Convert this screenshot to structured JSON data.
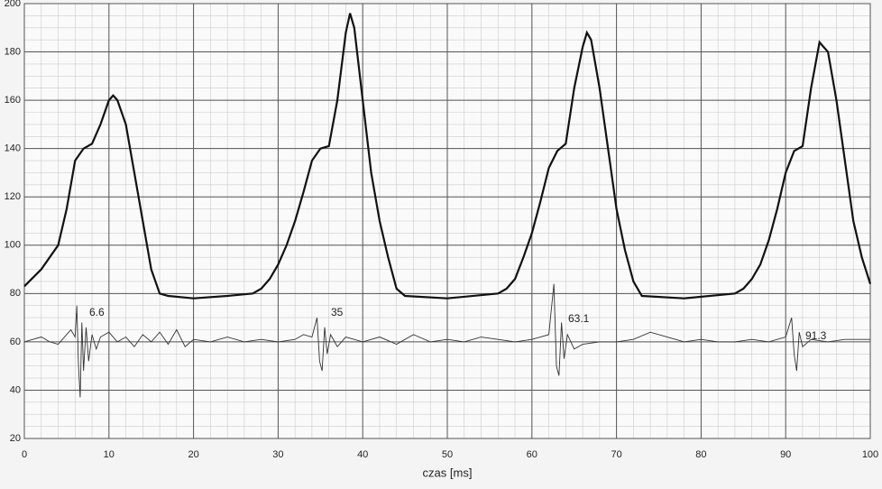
{
  "chart_data": {
    "type": "line",
    "xlabel": "czas [ms]",
    "xlim": [
      0,
      100
    ],
    "xticks": [
      0,
      10,
      20,
      30,
      40,
      50,
      60,
      70,
      80,
      90,
      100
    ],
    "ylim": [
      20,
      200
    ],
    "yticks": [
      20,
      40,
      60,
      80,
      100,
      120,
      140,
      160,
      180,
      200
    ],
    "grid": true,
    "annotations": [
      "6.6",
      "35",
      "63.1",
      "91.3"
    ],
    "series": [
      {
        "color": "#111111",
        "x": [
          0,
          2,
          4,
          5,
          6,
          7,
          8,
          9,
          10,
          10.5,
          11,
          12,
          13,
          14,
          15,
          16,
          17,
          20,
          24,
          27,
          28,
          29,
          30,
          31,
          32,
          33,
          34,
          35,
          36,
          37,
          38,
          38.5,
          39,
          40,
          41,
          42,
          43,
          44,
          45,
          50,
          56,
          57,
          58,
          59,
          60,
          61,
          62,
          63,
          64,
          65,
          66,
          66.5,
          67,
          68,
          69,
          70,
          71,
          72,
          73,
          78,
          84,
          85,
          86,
          87,
          88,
          89,
          90,
          91,
          92,
          93,
          94,
          95,
          96,
          97,
          98,
          99,
          100
        ],
        "values": [
          83,
          90,
          100,
          115,
          135,
          140,
          142,
          150,
          160,
          162,
          160,
          150,
          130,
          110,
          90,
          80,
          79,
          78,
          79,
          80,
          82,
          86,
          92,
          100,
          110,
          122,
          135,
          140,
          141,
          160,
          188,
          196,
          190,
          160,
          130,
          110,
          95,
          82,
          79,
          78,
          80,
          82,
          86,
          95,
          105,
          118,
          132,
          139,
          142,
          165,
          182,
          188,
          185,
          165,
          140,
          115,
          98,
          85,
          79,
          78,
          80,
          82,
          86,
          92,
          102,
          115,
          130,
          139,
          141,
          165,
          184,
          180,
          160,
          135,
          110,
          95,
          84
        ]
      },
      {
        "color": "#333333",
        "x": [
          0,
          1,
          2,
          3,
          4,
          5,
          5.5,
          6,
          6.2,
          6.4,
          6.6,
          6.8,
          7,
          7.3,
          7.6,
          8,
          8.5,
          9,
          10,
          11,
          12,
          13,
          14,
          15,
          16,
          17,
          18,
          19,
          20,
          22,
          24,
          26,
          28,
          30,
          32,
          33,
          34,
          34.6,
          34.9,
          35.2,
          35.5,
          35.8,
          36.2,
          37,
          38,
          40,
          42,
          44,
          46,
          48,
          50,
          52,
          54,
          56,
          58,
          60,
          61,
          62,
          62.6,
          62.9,
          63.2,
          63.5,
          63.8,
          64.2,
          65,
          66,
          68,
          70,
          72,
          74,
          76,
          78,
          80,
          82,
          84,
          86,
          88,
          90,
          90.7,
          91,
          91.3,
          91.6,
          92,
          93,
          95,
          97,
          100
        ],
        "values": [
          60,
          61,
          62,
          60,
          59,
          63,
          65,
          62,
          75,
          50,
          37,
          68,
          48,
          66,
          52,
          63,
          57,
          62,
          64,
          60,
          62,
          58,
          63,
          60,
          64,
          59,
          65,
          58,
          61,
          60,
          62,
          60,
          61,
          60,
          61,
          63,
          62,
          70,
          52,
          48,
          66,
          55,
          63,
          58,
          62,
          60,
          62,
          59,
          63,
          60,
          61,
          60,
          62,
          61,
          60,
          61,
          62,
          63,
          84,
          50,
          46,
          68,
          53,
          63,
          57,
          59,
          60,
          60,
          61,
          64,
          62,
          60,
          61,
          60,
          60,
          61,
          60,
          62,
          70,
          55,
          48,
          64,
          58,
          61,
          60,
          61,
          61
        ]
      }
    ]
  }
}
